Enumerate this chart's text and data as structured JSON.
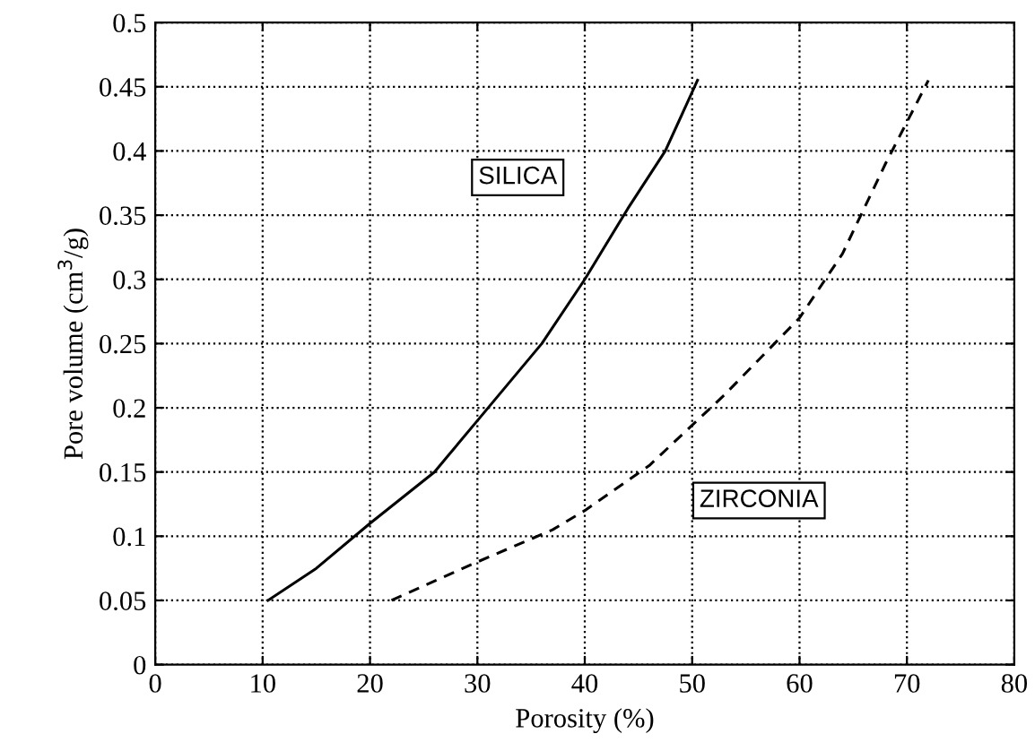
{
  "chart_data": {
    "type": "line",
    "xlabel": "Porosity (%)",
    "ylabel": "Pore volume (cm$^{3}$/g)",
    "xlim": [
      0,
      80
    ],
    "xticks": [
      0,
      10,
      20,
      30,
      40,
      50,
      60,
      70,
      80
    ],
    "ylim": [
      0,
      0.5
    ],
    "yticks": [
      0,
      0.05,
      0.1,
      0.15,
      0.2,
      0.25,
      0.3,
      0.35,
      0.4,
      0.45,
      0.5
    ],
    "grid": true,
    "legend": false,
    "series": [
      {
        "name": "SILICA",
        "color": "#000000",
        "line_style": "solid",
        "x": [
          10.5,
          15,
          20,
          26,
          30,
          36,
          40,
          44,
          47.5,
          50.5
        ],
        "values": [
          0.05,
          0.075,
          0.11,
          0.15,
          0.19,
          0.25,
          0.3,
          0.355,
          0.4,
          0.455
        ]
      },
      {
        "name": "ZIRCONIA",
        "color": "#000000",
        "line_style": "dashed",
        "x": [
          22,
          30,
          37,
          40,
          46,
          53,
          60,
          64,
          68,
          72
        ],
        "values": [
          0.05,
          0.08,
          0.105,
          0.12,
          0.155,
          0.21,
          0.27,
          0.32,
          0.39,
          0.455
        ]
      }
    ]
  }
}
